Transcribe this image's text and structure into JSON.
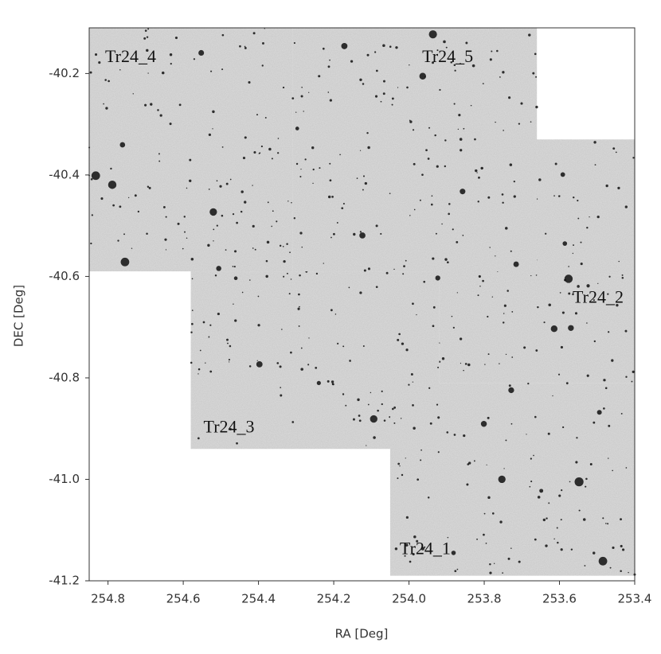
{
  "chart_data": {
    "type": "mosaic",
    "xlabel": "RA [Deg]",
    "ylabel": "DEC [Deg]",
    "xlim": [
      254.85,
      253.4
    ],
    "ylim": [
      -41.2,
      -40.11
    ],
    "xticks": [
      254.8,
      254.6,
      254.4,
      254.2,
      {
        "value": 254,
        "label": "254.0"
      },
      253.8,
      253.6,
      253.4
    ],
    "yticks": [
      -40.2,
      -40.4,
      -40.6,
      -40.8,
      {
        "value": -41,
        "label": "-41.0"
      },
      -41.2
    ],
    "fields": [
      {
        "name": "Tr24_2",
        "ra": [
          253.92,
          253.4
        ],
        "dec": [
          -40.81,
          -40.33
        ]
      },
      {
        "name": "Tr24_3",
        "ra": [
          254.58,
          253.92
        ],
        "dec": [
          -40.94,
          -40.59
        ]
      },
      {
        "name": "Tr24_1",
        "ra": [
          254.05,
          253.4
        ],
        "dec": [
          -41.19,
          -40.81
        ]
      },
      {
        "name": "Tr24_4",
        "ra": [
          254.85,
          254.31
        ],
        "dec": [
          -40.59,
          -40.11
        ]
      },
      {
        "name": "Tr24_5",
        "ra": [
          254.31,
          253.66
        ],
        "dec": [
          -40.59,
          -40.11
        ]
      }
    ]
  }
}
